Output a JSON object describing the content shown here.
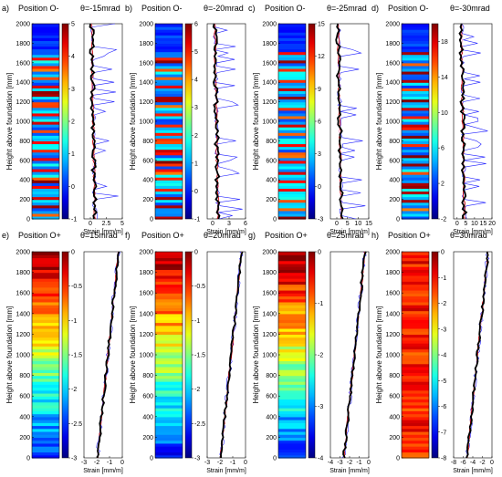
{
  "figure": {
    "ylabel": "Height above foundation [mm]",
    "xlabel": "Strain [mm/m]",
    "y_ticks": [
      0,
      200,
      400,
      600,
      800,
      1000,
      1200,
      1400,
      1600,
      1800,
      2000
    ],
    "colors": {
      "strain_black": "#000000",
      "strain_red": "#c00000",
      "strain_blue": "#2222ff",
      "strain_pink": "#f2a8c8"
    }
  },
  "chart_data": [
    {
      "type": "heatmap",
      "id": "a",
      "letter": "a)",
      "position": "Position O-",
      "theta": "θ=-15mrad",
      "colormap": "jet",
      "ylim": [
        0,
        2000
      ],
      "colorbar": {
        "min": -1,
        "max": 5,
        "ticks": [
          -1,
          0,
          1,
          2,
          3,
          4,
          5
        ]
      },
      "xlim": [
        -1,
        5
      ],
      "x_ticks": [
        0,
        2.5,
        5
      ],
      "x_tick_labels": [
        "0",
        "2.5",
        "5"
      ]
    },
    {
      "type": "heatmap",
      "id": "b",
      "letter": "b)",
      "position": "Position O-",
      "theta": "θ=-20mrad",
      "colormap": "jet",
      "ylim": [
        0,
        2000
      ],
      "colorbar": {
        "min": -1,
        "max": 6,
        "ticks": [
          -1,
          0,
          1,
          2,
          3,
          4,
          5,
          6
        ]
      },
      "xlim": [
        -1,
        6
      ],
      "x_ticks": [
        0,
        3,
        6
      ],
      "x_tick_labels": [
        "0",
        "3",
        "6"
      ]
    },
    {
      "type": "heatmap",
      "id": "c",
      "letter": "c)",
      "position": "Position O-",
      "theta": "θ=-25mrad",
      "colormap": "jet",
      "ylim": [
        0,
        2000
      ],
      "colorbar": {
        "min": -3,
        "max": 15,
        "ticks": [
          -3,
          0,
          3,
          6,
          9,
          12,
          15
        ]
      },
      "xlim": [
        -3,
        15
      ],
      "x_ticks": [
        0,
        5,
        10,
        15
      ],
      "x_tick_labels": [
        "0",
        "5",
        "10",
        "15"
      ]
    },
    {
      "type": "heatmap",
      "id": "d",
      "letter": "d)",
      "position": "Position O-",
      "theta": "θ=-30mrad",
      "colormap": "jet",
      "ylim": [
        0,
        2000
      ],
      "colorbar": {
        "min": -2,
        "max": 20,
        "ticks": [
          -2,
          2,
          6,
          10,
          14,
          18
        ]
      },
      "xlim": [
        -2,
        20
      ],
      "x_ticks": [
        0,
        5,
        10,
        15,
        20
      ],
      "x_tick_labels": [
        "0",
        "5",
        "10",
        "15",
        "20"
      ]
    },
    {
      "type": "heatmap",
      "id": "e",
      "letter": "e)",
      "position": "Position O+",
      "theta": "θ=15mrad",
      "colormap": "jet",
      "ylim": [
        0,
        2000
      ],
      "colorbar": {
        "min": -3,
        "max": 0,
        "ticks": [
          -3,
          -2.5,
          -2,
          -1.5,
          -1,
          -0.5,
          0
        ]
      },
      "xlim": [
        -3,
        0
      ],
      "x_ticks": [
        -3,
        -2,
        -1,
        0
      ],
      "x_tick_labels": [
        "-3",
        "-2",
        "-1",
        "0"
      ]
    },
    {
      "type": "heatmap",
      "id": "f",
      "letter": "f)",
      "position": "Position O+",
      "theta": "θ=20mrad",
      "colormap": "jet",
      "ylim": [
        0,
        2000
      ],
      "colorbar": {
        "min": -3,
        "max": 0,
        "ticks": [
          -3,
          -2.5,
          -2,
          -1.5,
          -1,
          -0.5,
          0
        ]
      },
      "xlim": [
        -3,
        0
      ],
      "x_ticks": [
        -3,
        -2,
        -1,
        0
      ],
      "x_tick_labels": [
        "-3",
        "-2",
        "-1",
        "0"
      ]
    },
    {
      "type": "heatmap",
      "id": "g",
      "letter": "g)",
      "position": "Position O+",
      "theta": "θ=25mrad",
      "colormap": "jet",
      "ylim": [
        0,
        2000
      ],
      "colorbar": {
        "min": -4,
        "max": 0,
        "ticks": [
          -4,
          -3,
          -2,
          -1,
          0
        ]
      },
      "xlim": [
        -4,
        0
      ],
      "x_ticks": [
        -4,
        -3,
        -2,
        -1,
        0
      ],
      "x_tick_labels": [
        "-4",
        "-3",
        "-2",
        "-1",
        "0"
      ]
    },
    {
      "type": "heatmap",
      "id": "h",
      "letter": "h)",
      "position": "Position O+",
      "theta": "θ=30mrad",
      "colormap": "jet",
      "ylim": [
        0,
        2000
      ],
      "colorbar": {
        "min": -8,
        "max": 0,
        "ticks": [
          -8,
          -7,
          -6,
          -5,
          -4,
          -3,
          -2,
          -1,
          0
        ]
      },
      "xlim": [
        -8,
        0
      ],
      "x_ticks": [
        -8,
        -6,
        -4,
        -2,
        0
      ],
      "x_tick_labels": [
        "-8",
        "-6",
        "-4",
        "-2",
        "0"
      ]
    }
  ]
}
